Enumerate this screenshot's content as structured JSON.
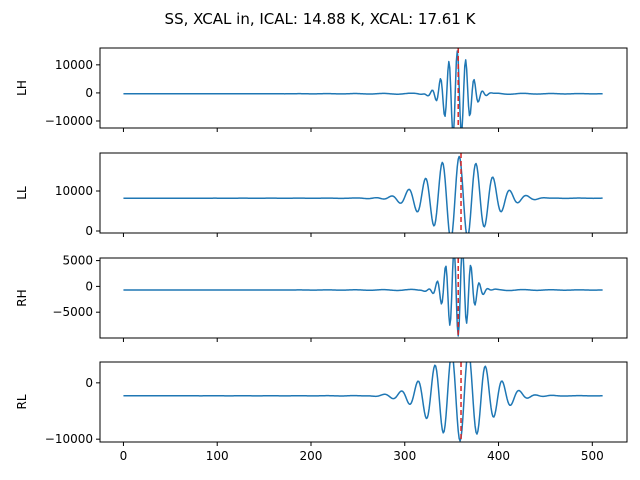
{
  "figure": {
    "title": "SS, XCAL in, ICAL: 14.88 K, XCAL: 17.61 K"
  },
  "colors": {
    "series": "#1f77b4",
    "marker": "#d62728"
  },
  "chart_data": [
    {
      "type": "line",
      "ylabel": "LH",
      "xlim": [
        -25,
        537
      ],
      "ylim": [
        -12500,
        16000
      ],
      "yticks": [
        -10000,
        0,
        10000
      ],
      "ytick_labels": [
        "−10000",
        "0",
        "10000"
      ],
      "xticks": [
        0,
        100,
        200,
        300,
        400,
        500
      ],
      "xtick_labels": [
        "",
        "",
        "",
        "",
        "",
        ""
      ],
      "marker_x": 357,
      "baseline": -300,
      "peak_center": 356,
      "peak_amplitude": 15500,
      "peak_decay": 12,
      "peak_period": 9,
      "grid": false
    },
    {
      "type": "line",
      "ylabel": "LL",
      "xlim": [
        -25,
        537
      ],
      "ylim": [
        -500,
        19500
      ],
      "yticks": [
        0,
        10000
      ],
      "ytick_labels": [
        "0",
        "10000"
      ],
      "xticks": [
        0,
        100,
        200,
        300,
        400,
        500
      ],
      "xtick_labels": [
        "",
        "",
        "",
        "",
        "",
        ""
      ],
      "marker_x": 360,
      "baseline": 8200,
      "peak_center": 358,
      "peak_amplitude": 10500,
      "peak_decay": 30,
      "peak_period": 18,
      "grid": false
    },
    {
      "type": "line",
      "ylabel": "RH",
      "xlim": [
        -25,
        537
      ],
      "ylim": [
        -10000,
        5500
      ],
      "yticks": [
        -5000,
        0,
        5000
      ],
      "ytick_labels": [
        "−5000",
        "0",
        "5000"
      ],
      "xticks": [
        0,
        100,
        200,
        300,
        400,
        500
      ],
      "xtick_labels": [
        "",
        "",
        "",
        "",
        "",
        ""
      ],
      "marker_x": 357,
      "baseline": -700,
      "peak_center": 357,
      "peak_amplitude": -8800,
      "peak_decay": 12,
      "peak_period": 9,
      "grid": false
    },
    {
      "type": "line",
      "ylabel": "RL",
      "xlim": [
        -25,
        537
      ],
      "ylim": [
        -10500,
        3700
      ],
      "yticks": [
        -10000,
        0
      ],
      "ytick_labels": [
        "−10000",
        "0"
      ],
      "xticks": [
        0,
        100,
        200,
        300,
        400,
        500
      ],
      "xtick_labels": [
        "0",
        "100",
        "200",
        "300",
        "400",
        "500"
      ],
      "marker_x": 360,
      "baseline": -2300,
      "peak_center": 359,
      "peak_amplitude": -8000,
      "peak_decay": 30,
      "peak_period": 18,
      "grid": false
    }
  ]
}
